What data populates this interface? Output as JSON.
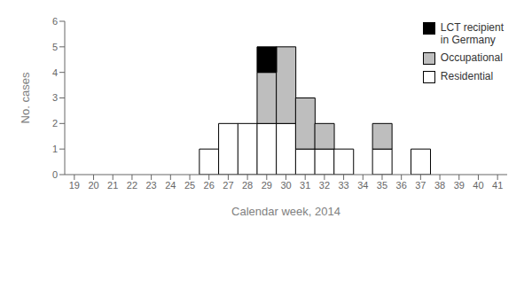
{
  "chart_data": {
    "type": "bar",
    "stacked": true,
    "categories": [
      "19",
      "20",
      "21",
      "22",
      "23",
      "24",
      "25",
      "26",
      "27",
      "28",
      "29",
      "30",
      "31",
      "32",
      "33",
      "34",
      "35",
      "36",
      "37",
      "38",
      "39",
      "40",
      "41"
    ],
    "series": [
      {
        "name": "Residential",
        "color": "#ffffff",
        "values": [
          0,
          0,
          0,
          0,
          0,
          0,
          0,
          1,
          2,
          2,
          2,
          2,
          1,
          1,
          1,
          0,
          1,
          0,
          1,
          0,
          0,
          0,
          0
        ]
      },
      {
        "name": "Occupational",
        "color": "#bebebe",
        "values": [
          0,
          0,
          0,
          0,
          0,
          0,
          0,
          0,
          0,
          0,
          2,
          3,
          2,
          1,
          0,
          0,
          1,
          0,
          0,
          0,
          0,
          0,
          0
        ]
      },
      {
        "name": "LCT recipient\nin Germany",
        "color": "#000000",
        "values": [
          0,
          0,
          0,
          0,
          0,
          0,
          0,
          0,
          0,
          0,
          1,
          0,
          0,
          0,
          0,
          0,
          0,
          0,
          0,
          0,
          0,
          0,
          0
        ]
      }
    ],
    "xlabel": "Calendar week, 2014",
    "ylabel": "No. cases",
    "ylim": [
      0,
      6
    ],
    "yticks": [
      0,
      1,
      2,
      3,
      4,
      5,
      6
    ],
    "legend": "upper right",
    "grid": false
  }
}
